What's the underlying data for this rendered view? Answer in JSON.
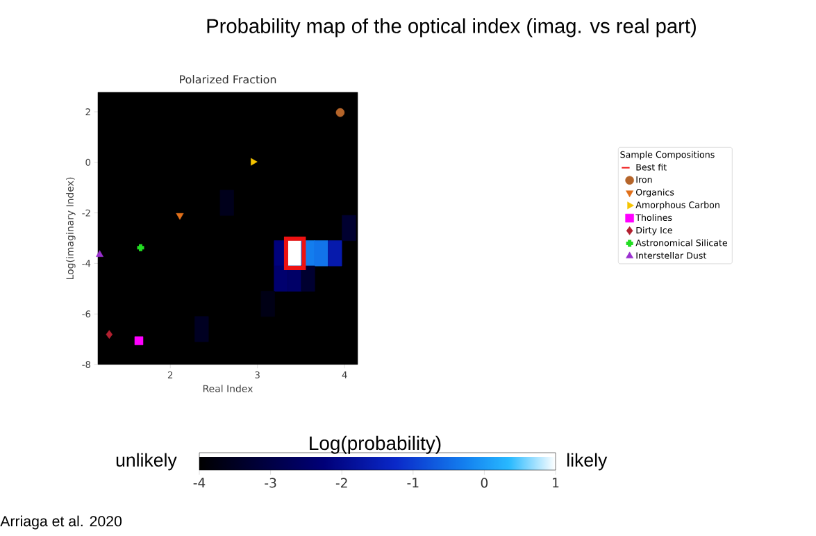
{
  "chart_data": {
    "type": "scatter",
    "title": "Probability map of the optical index (imag. vs real part)",
    "subtitle": "Polarized Fraction",
    "xlabel": "Real Index",
    "ylabel": "Log(imaginary Index)",
    "legend_title": "Sample Compositions",
    "clabel": "Log(probability)",
    "xlim": [
      1.17,
      4.15
    ],
    "ylim": [
      -8,
      2.77
    ],
    "xticks": [
      2,
      3,
      4
    ],
    "yticks": [
      -8,
      -6,
      -4,
      -2,
      0,
      2
    ],
    "clim": [
      -4,
      1
    ],
    "cticks": [
      -4,
      -3,
      -2,
      -1,
      0,
      1
    ],
    "legend": "right",
    "annotations": [
      "unlikely",
      "likely",
      "Arriaga et al. 2020"
    ],
    "series": [
      {
        "type": "scatter",
        "marker": "square",
        "x": [
          3.27,
          3.43,
          3.58,
          3.73,
          3.89,
          3.27,
          3.43,
          3.58,
          2.65,
          3.12,
          2.36,
          4.05
        ],
        "values": [
          -3.6,
          -3.6,
          -3.6,
          -3.6,
          -3.6,
          -4.6,
          -4.6,
          -4.6,
          -1.6,
          -5.6,
          -6.6,
          -2.6
        ],
        "cvalues": [
          -2.2,
          1,
          -0.3,
          -0.4,
          -1.6,
          -2.4,
          -2.5,
          -3.3,
          -3.6,
          -3.7,
          -3.5,
          -3.3
        ],
        "colors": [
          "#01027c",
          "#ffffff",
          "#147eee",
          "#1374ea",
          "#061aac",
          "#00006e",
          "#000067",
          "#000030",
          "#00001b",
          "#000015",
          "#000022",
          "#000030"
        ]
      },
      {
        "name": "Best fit",
        "type": "scatter",
        "marker": "square",
        "color": "#ee1111",
        "x": [
          3.43
        ],
        "values": [
          -3.6
        ]
      },
      {
        "name": "Iron",
        "marker": "circle",
        "color": "#b5652a",
        "x": [
          3.95
        ],
        "values": [
          1.97
        ]
      },
      {
        "name": "Organics",
        "marker": "triangle down",
        "color": "#e0701a",
        "x": [
          2.11
        ],
        "values": [
          -2.1
        ]
      },
      {
        "name": "Amorphous Carbon",
        "marker": "triangle right",
        "color": "#f5c400",
        "x": [
          2.95
        ],
        "values": [
          0.02
        ]
      },
      {
        "name": "Tholines",
        "marker": "square",
        "color": "#ff00ff",
        "x": [
          1.64
        ],
        "values": [
          -7.06
        ]
      },
      {
        "name": "Dirty Ice",
        "marker": "diamond",
        "color": "#b22030",
        "x": [
          1.3
        ],
        "values": [
          -6.81
        ]
      },
      {
        "name": "Astronomical Silicate",
        "marker": "cross",
        "color": "#22dd22",
        "x": [
          1.66
        ],
        "values": [
          -3.38
        ]
      },
      {
        "name": "Interstellar Dust",
        "marker": "triangle",
        "color": "#9b30d0",
        "x": [
          1.19
        ],
        "values": [
          -3.65
        ]
      }
    ]
  }
}
